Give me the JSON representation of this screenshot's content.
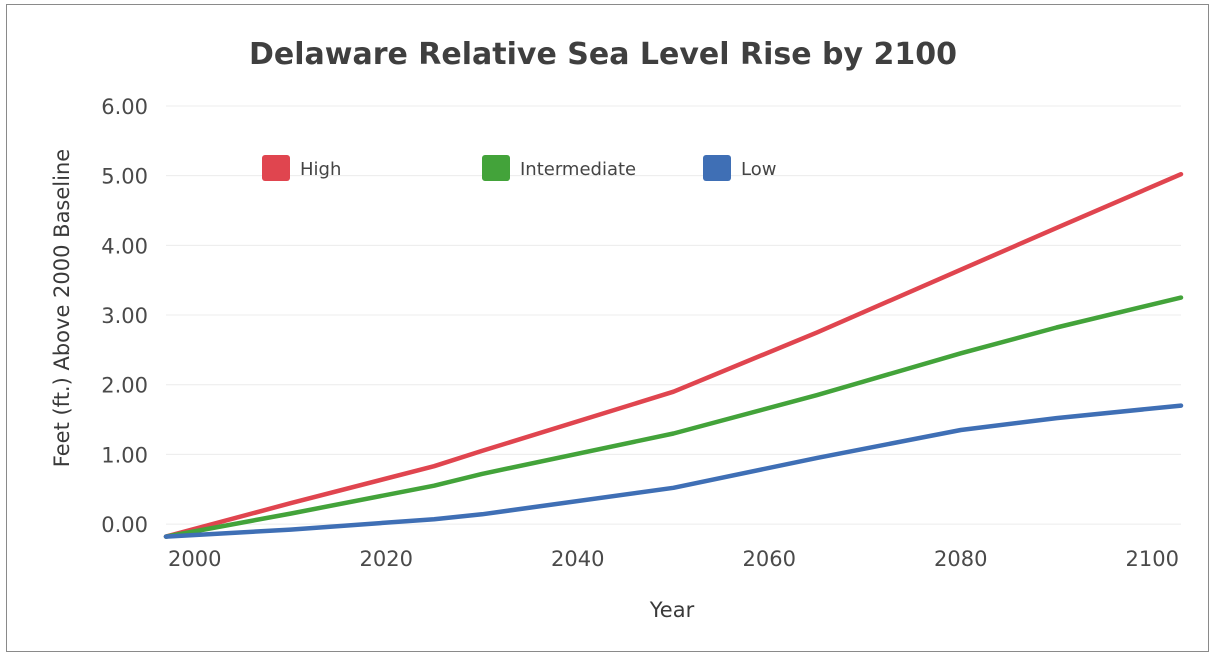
{
  "chart_data": {
    "type": "line",
    "title": "Delaware Relative Sea Level Rise by 2100",
    "xlabel": "Year",
    "ylabel": "Feet (ft.) Above 2000 Baseline",
    "xlim": [
      1997,
      2103
    ],
    "ylim": [
      -0.2,
      6.2
    ],
    "x_ticks": [
      "2000",
      "2020",
      "2040",
      "2060",
      "2080",
      "2100"
    ],
    "y_ticks": [
      "0.00",
      "1.00",
      "2.00",
      "3.00",
      "4.00",
      "5.00",
      "6.00"
    ],
    "grid": true,
    "legend_position": "top-left",
    "series": [
      {
        "name": "High",
        "color": "#e0454f",
        "x": [
          1997,
          2010,
          2025,
          2030,
          2050,
          2065,
          2080,
          2090,
          2103
        ],
        "y": [
          -0.18,
          0.3,
          0.83,
          1.05,
          1.9,
          2.75,
          3.65,
          4.25,
          5.02
        ]
      },
      {
        "name": "Intermediate",
        "color": "#43a33a",
        "x": [
          1997,
          2010,
          2025,
          2030,
          2050,
          2065,
          2080,
          2090,
          2103
        ],
        "y": [
          -0.18,
          0.15,
          0.55,
          0.72,
          1.3,
          1.85,
          2.45,
          2.82,
          3.25
        ]
      },
      {
        "name": "Low",
        "color": "#3f6fb5",
        "x": [
          1997,
          2010,
          2025,
          2030,
          2050,
          2065,
          2080,
          2090,
          2103
        ],
        "y": [
          -0.18,
          -0.08,
          0.07,
          0.14,
          0.52,
          0.95,
          1.35,
          1.52,
          1.7
        ]
      }
    ]
  }
}
